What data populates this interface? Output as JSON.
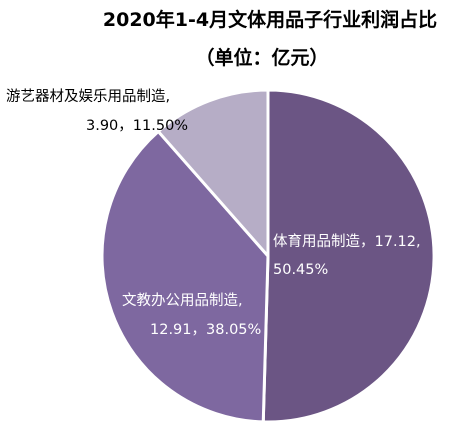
{
  "chart_data": {
    "type": "pie",
    "title": "2020年1-4月文体用品子行业利润占比",
    "subtitle": "（单位：亿元）",
    "slices": [
      {
        "label": "体育用品制造",
        "value": 17.12,
        "percent": 50.45,
        "text_line1": "体育用品制造，17.12,",
        "text_line2": "50.45%",
        "color": "#6b5584"
      },
      {
        "label": "文教办公用品制造",
        "value": 12.91,
        "percent": 38.05,
        "text_line1": "文教办公用品制造,",
        "text_line2": "12.91，38.05%",
        "color": "#7e68a0"
      },
      {
        "label": "游艺器材及娱乐用品制造",
        "value": 3.9,
        "percent": 11.5,
        "text_line1": "游艺器材及娱乐用品制造,",
        "text_line2": "3.90，11.50%",
        "color": "#b6adc6"
      }
    ],
    "legend": "none",
    "separator_color": "#ffffff"
  }
}
